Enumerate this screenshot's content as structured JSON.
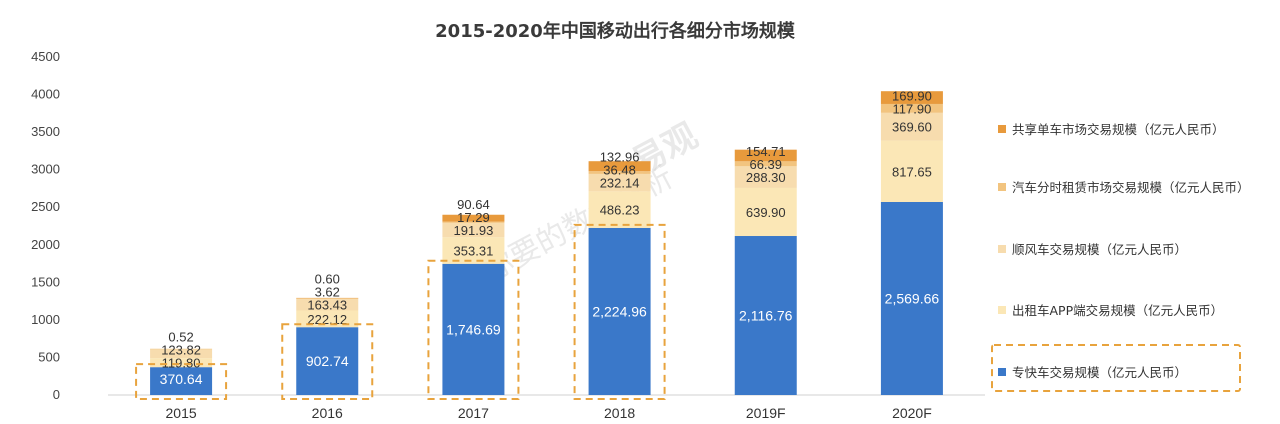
{
  "chart_data": {
    "type": "bar",
    "stacked": true,
    "title": "2015-2020年中国移动出行各细分市场规模",
    "categories": [
      "2015",
      "2016",
      "2017",
      "2018",
      "2019F",
      "2020F"
    ],
    "ylim": [
      0,
      4500
    ],
    "yticks": [
      0,
      500,
      1000,
      1500,
      2000,
      2500,
      3000,
      3500,
      4000,
      4500
    ],
    "grid": false,
    "legend_position": "right",
    "series": [
      {
        "name": "专快车交易规模（亿元人民币）",
        "color": "#3a78c9",
        "values": [
          370.64,
          902.74,
          1746.69,
          2224.96,
          2116.76,
          2569.66
        ],
        "labels": [
          "370.64",
          "902.74",
          "1,746.69",
          "2,224.96",
          "2,116.76",
          "2,569.66"
        ]
      },
      {
        "name": "出租车APP端交易规模（亿元人民币）",
        "color": "#fbe7b6",
        "values": [
          119.8,
          222.12,
          353.31,
          486.23,
          639.9,
          817.65
        ],
        "labels": [
          "119.80",
          "222.12",
          "353.31",
          "486.23",
          "639.90",
          "817.65"
        ]
      },
      {
        "name": "顺风车交易规模（亿元人民币）",
        "color": "#f7dcae",
        "values": [
          123.82,
          163.43,
          191.93,
          232.14,
          288.3,
          369.6
        ],
        "labels": [
          "123.82",
          "163.43",
          "191.93",
          "232.14",
          "288.30",
          "369.60"
        ]
      },
      {
        "name": "汽车分时租赁市场交易规模（亿元人民币）",
        "color": "#f2c47f",
        "values": [
          0.52,
          3.62,
          17.29,
          36.48,
          66.39,
          117.9
        ],
        "labels": [
          "0.52",
          "3.62",
          "17.29",
          "36.48",
          "66.39",
          "117.90"
        ]
      },
      {
        "name": "共享单车市场交易规模（亿元人民币）",
        "color": "#e89a3c",
        "values": [
          0,
          0.6,
          90.64,
          132.96,
          154.71,
          169.9
        ],
        "labels": [
          "",
          "0.60",
          "90.64",
          "132.96",
          "154.71",
          "169.90"
        ]
      }
    ],
    "highlight": {
      "color": "#e8a33d",
      "series": "专快车交易规模（亿元人民币）",
      "categories": [
        "2015",
        "2016",
        "2017",
        "2018"
      ]
    }
  },
  "watermark": {
    "brand": "易观",
    "slogan": "你要的数据分析"
  }
}
